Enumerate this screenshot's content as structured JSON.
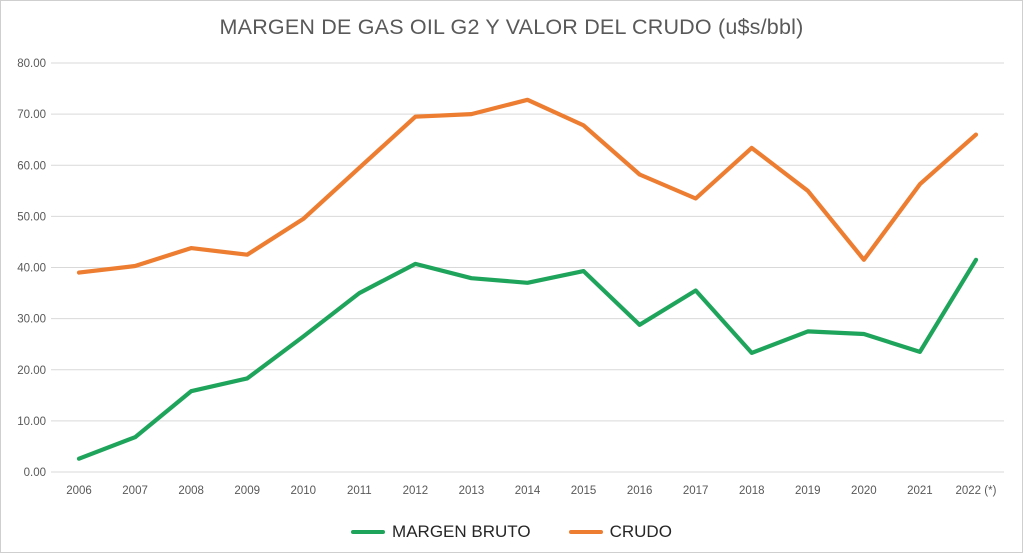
{
  "chart_data": {
    "type": "line",
    "title": "MARGEN DE GAS OIL G2 Y VALOR DEL CRUDO (u$s/bbl)",
    "categories": [
      "2006",
      "2007",
      "2008",
      "2009",
      "2010",
      "2011",
      "2012",
      "2013",
      "2014",
      "2015",
      "2016",
      "2017",
      "2018",
      "2019",
      "2020",
      "2021",
      "2022 (*)"
    ],
    "series": [
      {
        "name": "MARGEN BRUTO",
        "color": "#1fa45c",
        "values": [
          2.6,
          6.8,
          15.8,
          18.3,
          26.5,
          35.0,
          40.7,
          37.9,
          37.0,
          39.3,
          28.8,
          35.5,
          23.3,
          27.5,
          27.0,
          23.5,
          41.5
        ]
      },
      {
        "name": "CRUDO",
        "color": "#ed7d31",
        "values": [
          39.0,
          40.3,
          43.8,
          42.5,
          49.5,
          59.5,
          69.5,
          70.0,
          72.8,
          67.8,
          58.2,
          53.5,
          63.4,
          55.0,
          41.5,
          56.3,
          66.0
        ]
      }
    ],
    "xlabel": "",
    "ylabel": "",
    "ylim": [
      0,
      80
    ],
    "ytick_step": 10,
    "ytick_decimals": 2,
    "grid": true,
    "legend_position": "bottom",
    "colors": {
      "title_text": "#595959",
      "tick_text": "#595959",
      "gridline": "#d9d9d9",
      "background": "#ffffff",
      "legend_text": "#262626"
    }
  }
}
